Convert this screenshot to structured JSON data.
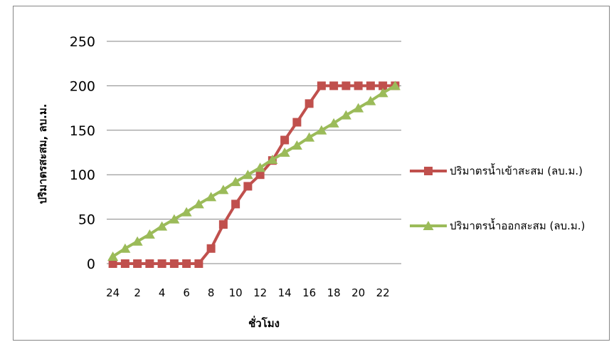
{
  "chart_data": {
    "type": "line",
    "xlabel": "ชั่วโมง",
    "ylabel": "ปริมาตรสะสม, ลบ.ม.",
    "ylim": [
      0,
      250
    ],
    "yticks": [
      0,
      50,
      100,
      150,
      200,
      250
    ],
    "grid": true,
    "legend_position": "right",
    "x": [
      24,
      1,
      2,
      3,
      4,
      5,
      6,
      7,
      8,
      9,
      10,
      11,
      12,
      13,
      14,
      15,
      16,
      17,
      18,
      19,
      20,
      21,
      22,
      23
    ],
    "xtick_labels": [
      "24",
      "2",
      "4",
      "6",
      "8",
      "10",
      "12",
      "14",
      "16",
      "18",
      "20",
      "22"
    ],
    "series": [
      {
        "name": "ปริมาตรน้ำเข้าสะสม (ลบ.ม.)",
        "color": "#C0504D",
        "marker": "square",
        "values": [
          0,
          0,
          0,
          0,
          0,
          0,
          0,
          0,
          17,
          44,
          67,
          87,
          100,
          116,
          139,
          159,
          180,
          200,
          200,
          200,
          200,
          200,
          200,
          200
        ]
      },
      {
        "name": "ปริมาตรน้ำออกสะสม (ลบ.ม.)",
        "color": "#9BBB59",
        "marker": "triangle",
        "values": [
          8,
          17,
          25,
          33,
          42,
          50,
          58,
          67,
          75,
          83,
          92,
          100,
          108,
          117,
          125,
          133,
          142,
          150,
          158,
          167,
          175,
          183,
          192,
          200
        ]
      }
    ]
  }
}
